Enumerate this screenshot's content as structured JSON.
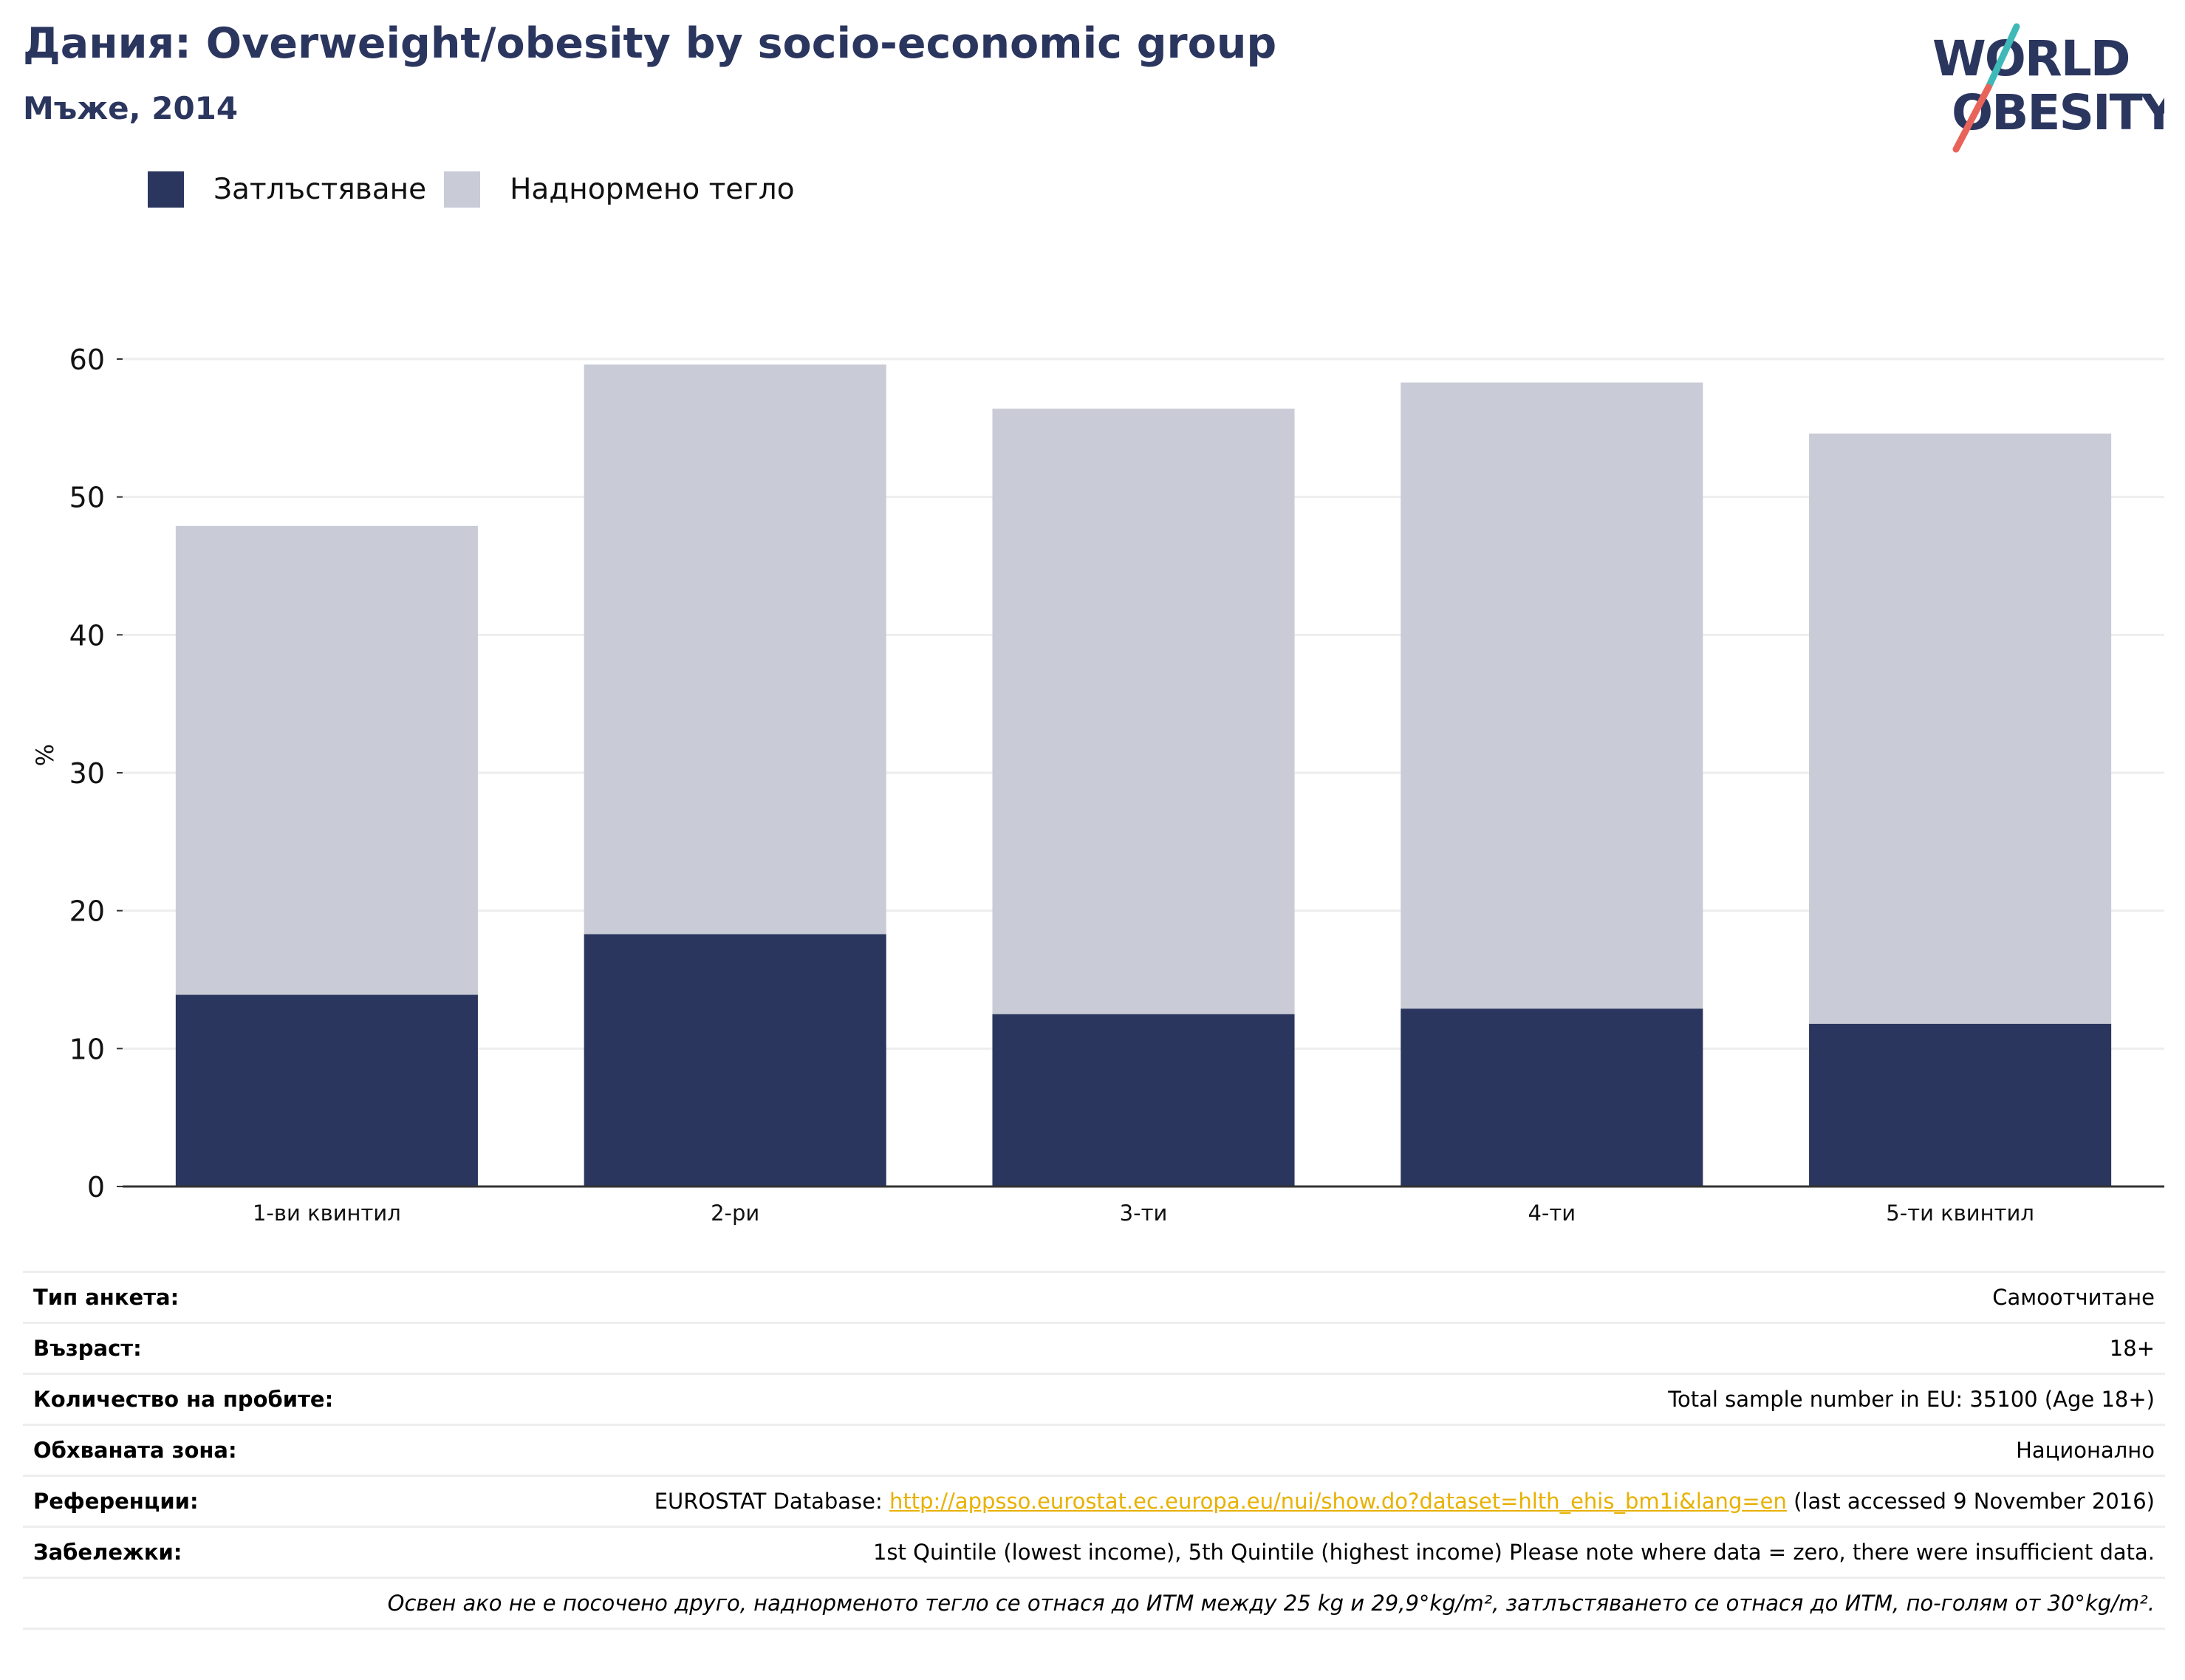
{
  "header": {
    "title": "Дания: Overweight/obesity by socio-economic group",
    "subtitle": "Мъже, 2014"
  },
  "logo": {
    "line1": "WORLD",
    "line2": "OBESITY",
    "accent_teal": "#3fb8b8",
    "accent_red": "#e8645a",
    "text_color": "#2b365f"
  },
  "colors": {
    "obesity": "#2b365f",
    "overweight": "#c9cbd6",
    "axis": "#333333",
    "grid": "#eeeeee",
    "link": "#e8b100"
  },
  "chart_data": {
    "type": "bar",
    "stacked": true,
    "categories": [
      "1-ви квинтил",
      "2-ри",
      "3-ти",
      "4-ти",
      "5-ти квинтил"
    ],
    "series": [
      {
        "name": "Затлъстяване",
        "values": [
          13.9,
          18.3,
          12.5,
          12.9,
          11.8
        ]
      },
      {
        "name": "Наднормено тегло",
        "values": [
          34.0,
          41.3,
          43.9,
          45.4,
          42.8
        ]
      }
    ],
    "ylabel": "%",
    "ylim": [
      0,
      60
    ],
    "yticks": [
      0,
      10,
      20,
      30,
      40,
      50,
      60
    ],
    "grid": true,
    "legend": "top-left"
  },
  "meta": {
    "rows": [
      {
        "key": "Тип анкета:",
        "value": "Самоотчитане"
      },
      {
        "key": "Възраст:",
        "value": "18+"
      },
      {
        "key": "Количество на пробите:",
        "value": "Total sample number in EU: 35100 (Age 18+)"
      },
      {
        "key": "Обхваната зона:",
        "value": "Национално"
      }
    ],
    "references": {
      "key": "Референции:",
      "prefix": "EUROSTAT Database: ",
      "link": "http://appsso.eurostat.ec.europa.eu/nui/show.do?dataset=hlth_ehis_bm1i&lang=en",
      "suffix": " (last accessed 9 November 2016)"
    },
    "notes": {
      "key": "Забележки:",
      "value": "1st Quintile (lowest income), 5th Quintile (highest income) Please note where data = zero, there were insufficient data."
    },
    "footnote": "Освен ако не е посочено друго, наднорменото тегло се отнася до ИТМ между 25 kg и 29,9°kg/m², затлъстяването се отнася до ИТМ, по-голям от 30°kg/m²."
  }
}
